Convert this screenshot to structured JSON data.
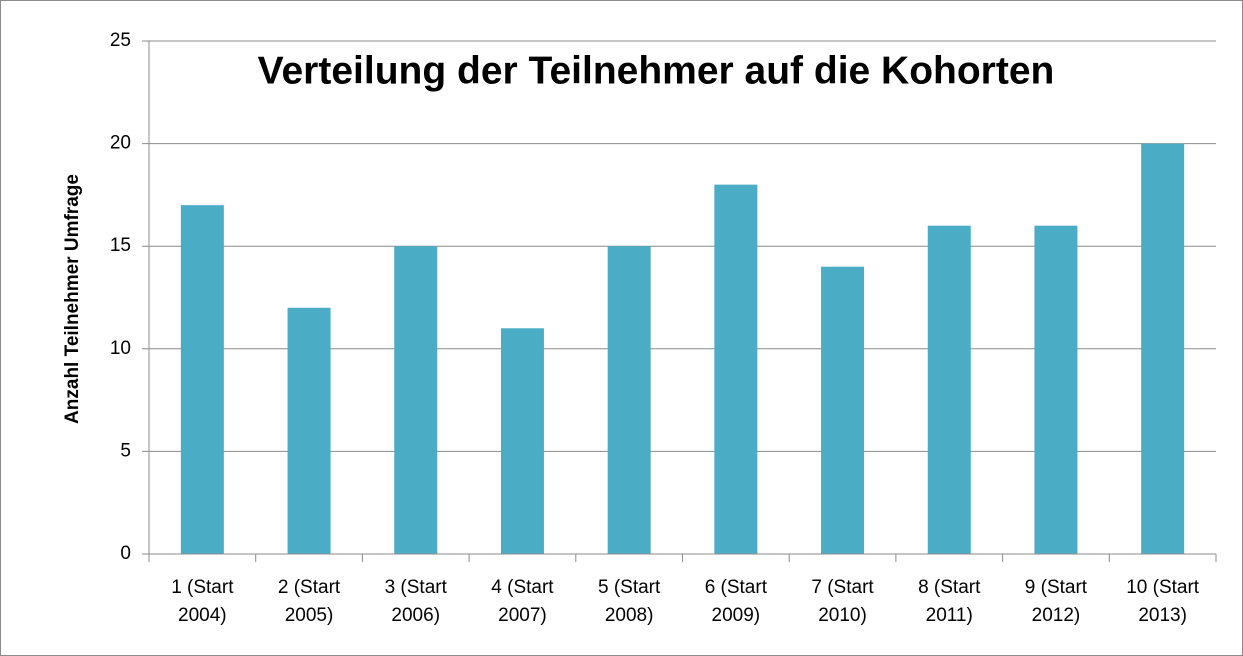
{
  "chart_data": {
    "type": "bar",
    "title": "Verteilung der Teilnehmer auf die Kohorten",
    "y_label": "Anzahl Teilnehmer Umfrage",
    "categories": [
      "1 (Start 2004)",
      "2 (Start 2005)",
      "3 (Start 2006)",
      "4 (Start 2007)",
      "5 (Start 2008)",
      "6 (Start 2009)",
      "7 (Start 2010)",
      "8 (Start 2011)",
      "9 (Start 2012)",
      "10 (Start 2013)"
    ],
    "values": [
      17,
      12,
      15,
      11,
      15,
      18,
      14,
      16,
      16,
      20
    ],
    "color": "#4bacc6",
    "ylim": [
      0,
      25
    ],
    "yticks": [
      0,
      5,
      10,
      15,
      20,
      25
    ],
    "grid": true
  }
}
